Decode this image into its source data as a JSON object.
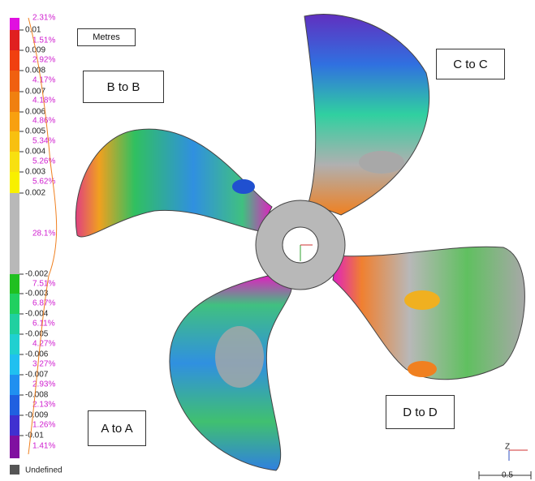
{
  "legend": {
    "unit": "Metres",
    "ticks": [
      "0.01",
      "0.009",
      "0.008",
      "0.007",
      "0.006",
      "0.005",
      "0.004",
      "0.003",
      "0.002",
      "-0.002",
      "-0.003",
      "-0.004",
      "-0.005",
      "-0.006",
      "-0.007",
      "-0.008",
      "-0.009",
      "-0.01"
    ],
    "percentages": [
      "2.31%",
      "1.51%",
      "2.92%",
      "4.17%",
      "4.18%",
      "4.86%",
      "5.34%",
      "5.26%",
      "5.62%",
      "28.1%",
      "7.51%",
      "6.87%",
      "6.11%",
      "4.27%",
      "3.27%",
      "2.93%",
      "2.13%",
      "1.26%",
      "1.41%"
    ],
    "undefined": "Undefined"
  },
  "labels": [
    "B to B",
    "C to C",
    "A to A",
    "D to D"
  ],
  "axis": {
    "z": "Z",
    "scale": "0.5"
  }
}
